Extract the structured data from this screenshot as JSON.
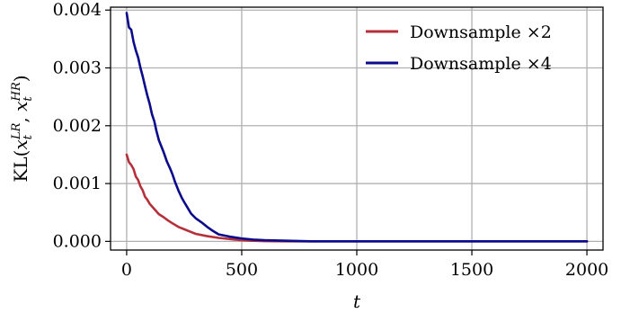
{
  "chart_data": {
    "type": "line",
    "title": "",
    "xlabel": "t",
    "ylabel": "KL(x_t^{LR}, x_t^{HR})",
    "xlim": [
      -70,
      2070
    ],
    "ylim": [
      -0.00015,
      0.00405
    ],
    "xticks": [
      0,
      500,
      1000,
      1500,
      2000
    ],
    "xtick_labels": [
      "0",
      "500",
      "1000",
      "1500",
      "2000"
    ],
    "yticks": [
      0.0,
      0.001,
      0.002,
      0.003,
      0.004
    ],
    "ytick_labels": [
      "0.000",
      "0.001",
      "0.002",
      "0.003",
      "0.004"
    ],
    "grid": true,
    "legend_position": "upper-right",
    "series": [
      {
        "name": "Downsample ×2",
        "color": "#b5303a",
        "x": [
          0,
          10,
          20,
          30,
          40,
          50,
          60,
          70,
          80,
          90,
          100,
          120,
          140,
          160,
          180,
          200,
          225,
          250,
          275,
          300,
          350,
          400,
          450,
          500,
          550,
          600,
          700,
          800,
          1000,
          1200,
          1400,
          1600,
          1800,
          2000
        ],
        "values": [
          0.0015,
          0.00137,
          0.00132,
          0.00125,
          0.00112,
          0.00106,
          0.00095,
          0.00088,
          0.00077,
          0.00072,
          0.00065,
          0.00056,
          0.00047,
          0.00042,
          0.00036,
          0.00031,
          0.00025,
          0.00021,
          0.00017,
          0.00013,
          9e-05,
          6e-05,
          4e-05,
          2e-05,
          1e-05,
          5e-06,
          0.0,
          0.0,
          0.0,
          0.0,
          0.0,
          0.0,
          0.0,
          0.0
        ]
      },
      {
        "name": "Downsample ×4",
        "color": "#0a0a8a",
        "x": [
          0,
          10,
          20,
          30,
          40,
          50,
          60,
          70,
          80,
          90,
          100,
          110,
          120,
          130,
          140,
          150,
          160,
          175,
          190,
          200,
          210,
          225,
          240,
          250,
          265,
          280,
          300,
          325,
          350,
          375,
          400,
          450,
          500,
          550,
          600,
          700,
          800,
          1000,
          1200,
          1400,
          1600,
          1800,
          2000
        ],
        "values": [
          0.00395,
          0.0037,
          0.00366,
          0.00345,
          0.0033,
          0.00318,
          0.003,
          0.00285,
          0.00268,
          0.00252,
          0.00238,
          0.0022,
          0.00208,
          0.0019,
          0.00175,
          0.00165,
          0.00155,
          0.00138,
          0.00125,
          0.00115,
          0.00103,
          0.00088,
          0.00075,
          0.00068,
          0.00058,
          0.00048,
          0.0004,
          0.00033,
          0.00025,
          0.00018,
          0.00012,
          8e-05,
          5e-05,
          3e-05,
          2e-05,
          1e-05,
          0.0,
          0.0,
          0.0,
          0.0,
          0.0,
          0.0,
          0.0
        ]
      }
    ]
  }
}
